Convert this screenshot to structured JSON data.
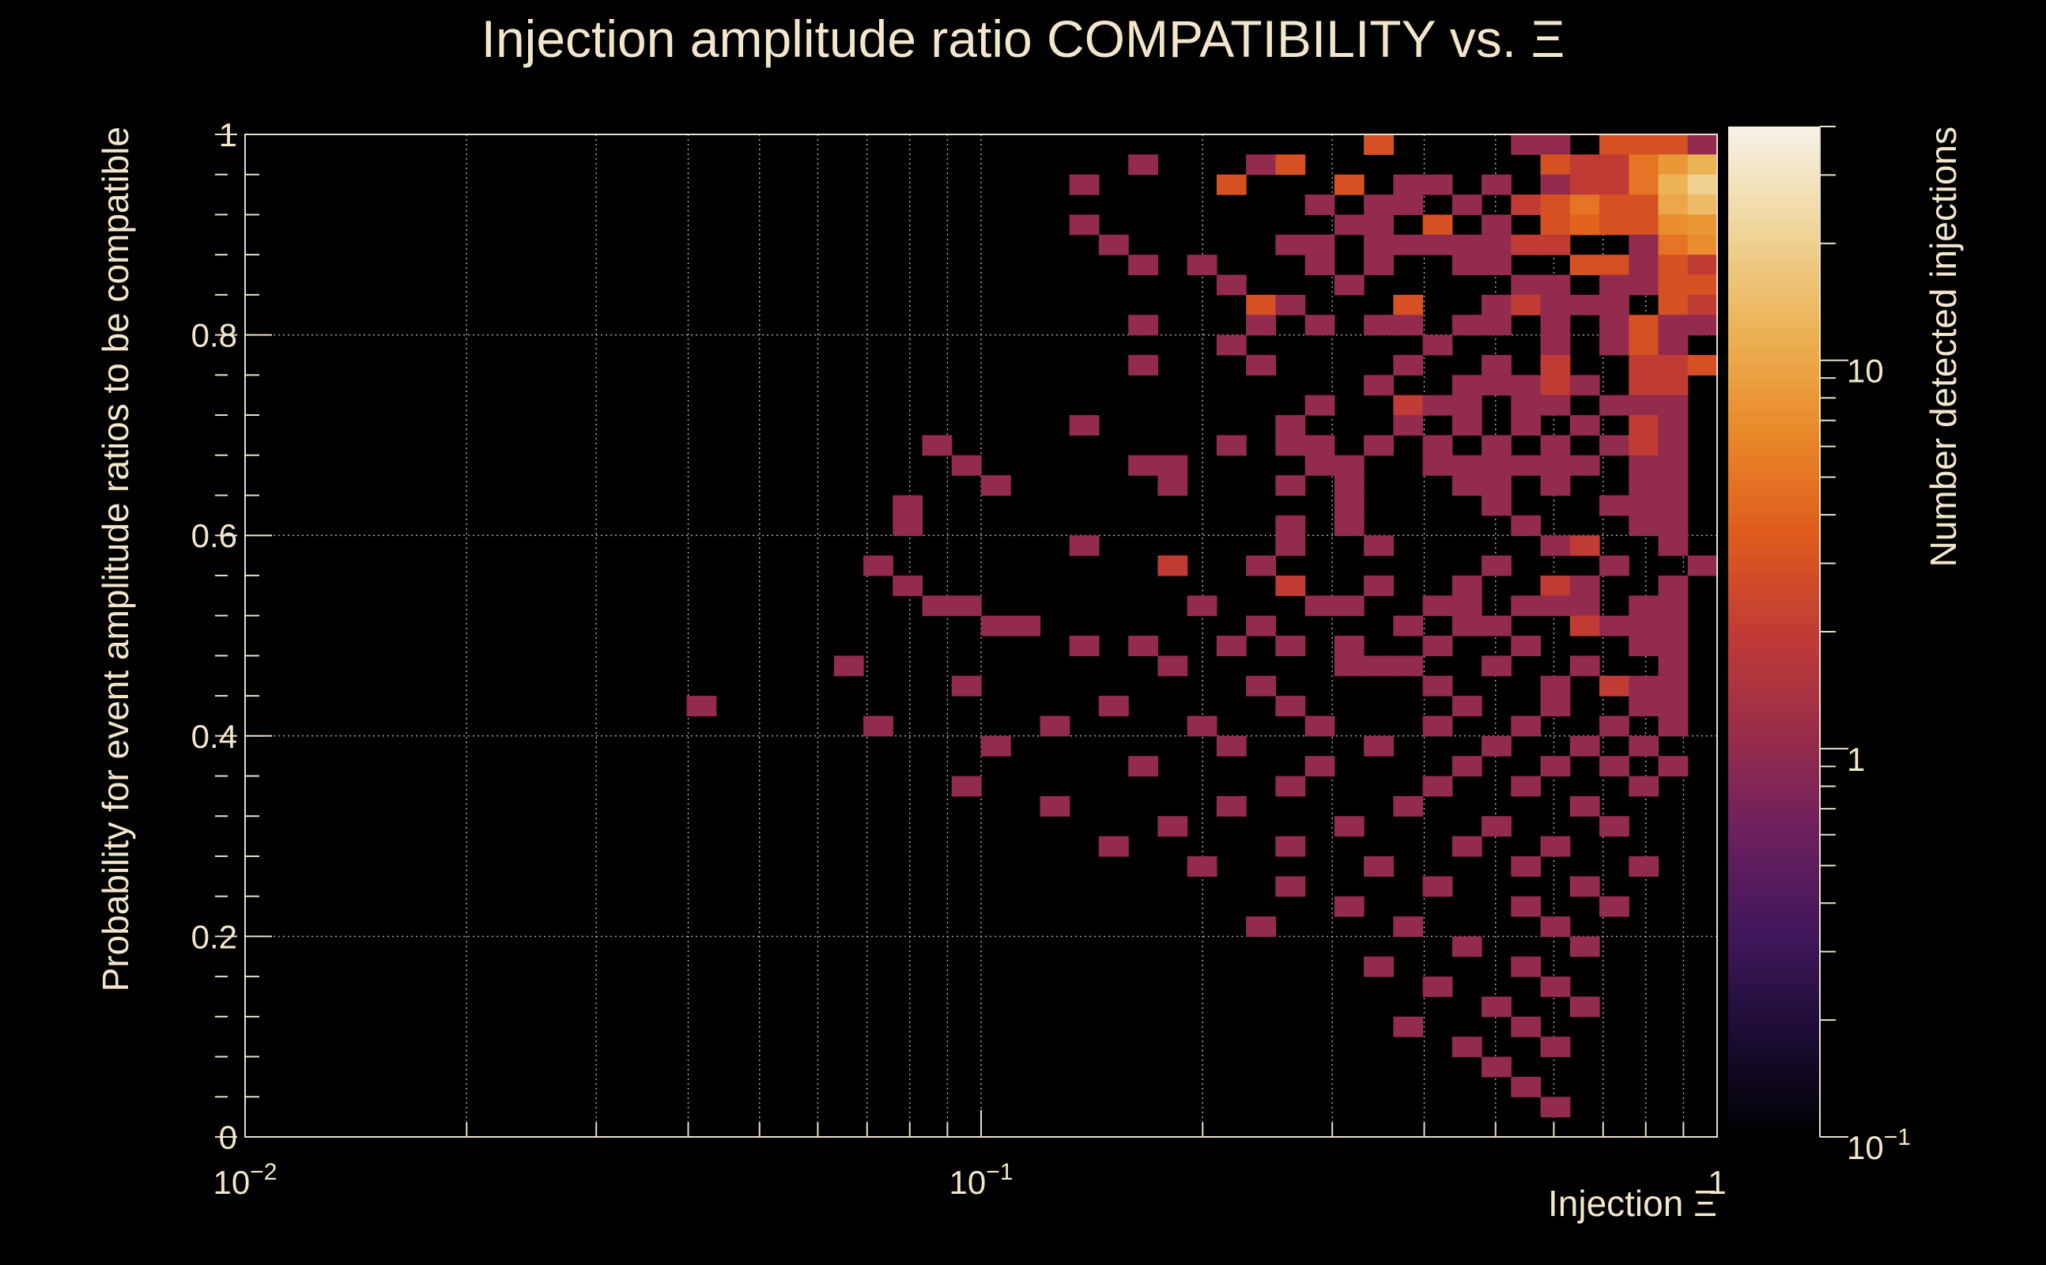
{
  "chart_data": {
    "type": "heatmap",
    "title": "Injection amplitude ratio COMPATIBILITY vs.  Ξ",
    "xlabel": "Injection Ξ",
    "ylabel": "Probability for event amplitude ratios to be compatible",
    "zlabel": "Number detected injections",
    "x_scale": "log",
    "z_scale": "log",
    "xlim": [
      0.01,
      1
    ],
    "ylim": [
      0,
      1
    ],
    "zlim": [
      0.1,
      40
    ],
    "grid": true,
    "x_bins": 50,
    "y_bins": 50,
    "x_ticks": [
      {
        "value": 0.01,
        "base": "10",
        "exp": "−2"
      },
      {
        "value": 0.1,
        "base": "10",
        "exp": "−1"
      },
      {
        "value": 1,
        "base": "1",
        "exp": ""
      }
    ],
    "y_ticks": [
      {
        "value": 0,
        "label": "0"
      },
      {
        "value": 0.2,
        "label": "0.2"
      },
      {
        "value": 0.4,
        "label": "0.4"
      },
      {
        "value": 0.6,
        "label": "0.6"
      },
      {
        "value": 0.8,
        "label": "0.8"
      },
      {
        "value": 1,
        "label": "1"
      }
    ],
    "z_ticks": [
      {
        "value": 0.1,
        "base": "10",
        "exp": "−1"
      },
      {
        "value": 1,
        "base": "1",
        "exp": ""
      },
      {
        "value": 10,
        "base": "10",
        "exp": ""
      }
    ],
    "colormap": [
      "#000000",
      "#1a0c33",
      "#40175a",
      "#6a1f5e",
      "#9a2d4a",
      "#c13b35",
      "#df5c1c",
      "#e98a2a",
      "#ecb355",
      "#efd59a",
      "#f7f2e8"
    ],
    "cells_note_format": "[x_bin_index, y_bin_index, count]",
    "cells": [
      [
        38,
        49,
        3
      ],
      [
        43,
        49,
        1
      ],
      [
        44,
        49,
        1
      ],
      [
        46,
        49,
        3
      ],
      [
        47,
        49,
        3
      ],
      [
        48,
        49,
        3
      ],
      [
        49,
        49,
        1
      ],
      [
        30,
        48,
        1
      ],
      [
        34,
        48,
        1
      ],
      [
        35,
        48,
        3
      ],
      [
        44,
        48,
        3
      ],
      [
        45,
        48,
        2
      ],
      [
        46,
        48,
        2
      ],
      [
        47,
        48,
        5
      ],
      [
        48,
        48,
        8
      ],
      [
        49,
        48,
        12
      ],
      [
        28,
        47,
        1
      ],
      [
        33,
        47,
        3
      ],
      [
        37,
        47,
        3
      ],
      [
        39,
        47,
        1
      ],
      [
        40,
        47,
        1
      ],
      [
        42,
        47,
        1
      ],
      [
        44,
        47,
        1
      ],
      [
        45,
        47,
        2
      ],
      [
        46,
        47,
        2
      ],
      [
        47,
        47,
        5
      ],
      [
        48,
        47,
        12
      ],
      [
        49,
        47,
        20
      ],
      [
        36,
        46,
        1
      ],
      [
        38,
        46,
        1
      ],
      [
        39,
        46,
        1
      ],
      [
        41,
        46,
        1
      ],
      [
        43,
        46,
        2
      ],
      [
        44,
        46,
        3
      ],
      [
        45,
        46,
        5
      ],
      [
        46,
        46,
        3
      ],
      [
        47,
        46,
        3
      ],
      [
        48,
        46,
        10
      ],
      [
        49,
        46,
        14
      ],
      [
        28,
        45,
        1
      ],
      [
        37,
        45,
        1
      ],
      [
        38,
        45,
        1
      ],
      [
        40,
        45,
        3
      ],
      [
        42,
        45,
        1
      ],
      [
        44,
        45,
        3
      ],
      [
        45,
        45,
        4
      ],
      [
        46,
        45,
        3
      ],
      [
        47,
        45,
        3
      ],
      [
        48,
        45,
        7
      ],
      [
        49,
        45,
        8
      ],
      [
        29,
        44,
        1
      ],
      [
        35,
        44,
        1
      ],
      [
        36,
        44,
        1
      ],
      [
        38,
        44,
        1
      ],
      [
        39,
        44,
        1
      ],
      [
        40,
        44,
        1
      ],
      [
        41,
        44,
        1
      ],
      [
        42,
        44,
        1
      ],
      [
        43,
        44,
        2
      ],
      [
        44,
        44,
        2
      ],
      [
        47,
        44,
        1
      ],
      [
        48,
        44,
        5
      ],
      [
        49,
        44,
        7
      ],
      [
        30,
        43,
        1
      ],
      [
        32,
        43,
        1
      ],
      [
        36,
        43,
        1
      ],
      [
        38,
        43,
        1
      ],
      [
        41,
        43,
        1
      ],
      [
        42,
        43,
        1
      ],
      [
        45,
        43,
        3
      ],
      [
        46,
        43,
        3
      ],
      [
        47,
        43,
        1
      ],
      [
        48,
        43,
        3
      ],
      [
        49,
        43,
        2
      ],
      [
        33,
        42,
        1
      ],
      [
        37,
        42,
        1
      ],
      [
        43,
        42,
        1
      ],
      [
        44,
        42,
        1
      ],
      [
        46,
        42,
        1
      ],
      [
        47,
        42,
        1
      ],
      [
        48,
        42,
        3
      ],
      [
        49,
        42,
        3
      ],
      [
        34,
        41,
        3
      ],
      [
        35,
        41,
        1
      ],
      [
        39,
        41,
        3
      ],
      [
        42,
        41,
        1
      ],
      [
        43,
        41,
        2
      ],
      [
        44,
        41,
        1
      ],
      [
        45,
        41,
        1
      ],
      [
        46,
        41,
        1
      ],
      [
        48,
        41,
        3
      ],
      [
        49,
        41,
        2
      ],
      [
        30,
        40,
        1
      ],
      [
        34,
        40,
        1
      ],
      [
        36,
        40,
        1
      ],
      [
        38,
        40,
        1
      ],
      [
        39,
        40,
        1
      ],
      [
        41,
        40,
        1
      ],
      [
        42,
        40,
        1
      ],
      [
        44,
        40,
        1
      ],
      [
        46,
        40,
        1
      ],
      [
        47,
        40,
        3
      ],
      [
        48,
        40,
        1
      ],
      [
        49,
        40,
        1
      ],
      [
        33,
        39,
        1
      ],
      [
        40,
        39,
        1
      ],
      [
        44,
        39,
        1
      ],
      [
        46,
        39,
        1
      ],
      [
        47,
        39,
        3
      ],
      [
        48,
        39,
        1
      ],
      [
        30,
        38,
        1
      ],
      [
        34,
        38,
        1
      ],
      [
        39,
        38,
        1
      ],
      [
        42,
        38,
        1
      ],
      [
        44,
        38,
        2
      ],
      [
        47,
        38,
        2
      ],
      [
        48,
        38,
        2
      ],
      [
        49,
        38,
        3
      ],
      [
        38,
        37,
        1
      ],
      [
        41,
        37,
        1
      ],
      [
        42,
        37,
        1
      ],
      [
        43,
        37,
        1
      ],
      [
        44,
        37,
        2
      ],
      [
        45,
        37,
        1
      ],
      [
        47,
        37,
        2
      ],
      [
        48,
        37,
        2
      ],
      [
        36,
        36,
        1
      ],
      [
        39,
        36,
        2
      ],
      [
        40,
        36,
        1
      ],
      [
        41,
        36,
        1
      ],
      [
        43,
        36,
        1
      ],
      [
        44,
        36,
        1
      ],
      [
        46,
        36,
        1
      ],
      [
        47,
        36,
        1
      ],
      [
        48,
        36,
        1
      ],
      [
        28,
        35,
        1
      ],
      [
        35,
        35,
        1
      ],
      [
        39,
        35,
        1
      ],
      [
        41,
        35,
        1
      ],
      [
        43,
        35,
        1
      ],
      [
        45,
        35,
        1
      ],
      [
        47,
        35,
        2
      ],
      [
        48,
        35,
        1
      ],
      [
        23,
        34,
        1
      ],
      [
        33,
        34,
        1
      ],
      [
        35,
        34,
        1
      ],
      [
        36,
        34,
        1
      ],
      [
        38,
        34,
        1
      ],
      [
        40,
        34,
        1
      ],
      [
        42,
        34,
        1
      ],
      [
        44,
        34,
        1
      ],
      [
        46,
        34,
        1
      ],
      [
        47,
        34,
        2
      ],
      [
        48,
        34,
        1
      ],
      [
        24,
        33,
        1
      ],
      [
        30,
        33,
        1
      ],
      [
        31,
        33,
        1
      ],
      [
        36,
        33,
        1
      ],
      [
        37,
        33,
        1
      ],
      [
        40,
        33,
        1
      ],
      [
        41,
        33,
        1
      ],
      [
        42,
        33,
        1
      ],
      [
        43,
        33,
        1
      ],
      [
        44,
        33,
        1
      ],
      [
        45,
        33,
        1
      ],
      [
        47,
        33,
        1
      ],
      [
        48,
        33,
        1
      ],
      [
        25,
        32,
        1
      ],
      [
        31,
        32,
        1
      ],
      [
        35,
        32,
        1
      ],
      [
        37,
        32,
        1
      ],
      [
        41,
        32,
        1
      ],
      [
        42,
        32,
        1
      ],
      [
        44,
        32,
        1
      ],
      [
        47,
        32,
        1
      ],
      [
        48,
        32,
        1
      ],
      [
        22,
        31,
        1
      ],
      [
        37,
        31,
        1
      ],
      [
        42,
        31,
        1
      ],
      [
        46,
        31,
        1
      ],
      [
        47,
        31,
        1
      ],
      [
        48,
        31,
        1
      ],
      [
        22,
        30,
        1
      ],
      [
        35,
        30,
        1
      ],
      [
        37,
        30,
        1
      ],
      [
        43,
        30,
        1
      ],
      [
        47,
        30,
        1
      ],
      [
        48,
        30,
        1
      ],
      [
        28,
        29,
        1
      ],
      [
        35,
        29,
        1
      ],
      [
        38,
        29,
        1
      ],
      [
        44,
        29,
        1
      ],
      [
        45,
        29,
        2
      ],
      [
        48,
        29,
        1
      ],
      [
        21,
        28,
        1
      ],
      [
        31,
        28,
        2
      ],
      [
        34,
        28,
        1
      ],
      [
        42,
        28,
        1
      ],
      [
        46,
        28,
        1
      ],
      [
        49,
        28,
        1
      ],
      [
        22,
        27,
        1
      ],
      [
        35,
        27,
        2
      ],
      [
        38,
        27,
        1
      ],
      [
        41,
        27,
        1
      ],
      [
        44,
        27,
        2
      ],
      [
        45,
        27,
        1
      ],
      [
        48,
        27,
        1
      ],
      [
        23,
        26,
        1
      ],
      [
        24,
        26,
        1
      ],
      [
        32,
        26,
        1
      ],
      [
        36,
        26,
        1
      ],
      [
        37,
        26,
        1
      ],
      [
        40,
        26,
        1
      ],
      [
        41,
        26,
        1
      ],
      [
        43,
        26,
        1
      ],
      [
        44,
        26,
        1
      ],
      [
        45,
        26,
        1
      ],
      [
        47,
        26,
        1
      ],
      [
        48,
        26,
        1
      ],
      [
        25,
        25,
        1
      ],
      [
        26,
        25,
        1
      ],
      [
        34,
        25,
        1
      ],
      [
        39,
        25,
        1
      ],
      [
        41,
        25,
        1
      ],
      [
        42,
        25,
        1
      ],
      [
        45,
        25,
        2
      ],
      [
        46,
        25,
        1
      ],
      [
        47,
        25,
        1
      ],
      [
        48,
        25,
        1
      ],
      [
        28,
        24,
        1
      ],
      [
        30,
        24,
        1
      ],
      [
        33,
        24,
        1
      ],
      [
        35,
        24,
        1
      ],
      [
        37,
        24,
        1
      ],
      [
        40,
        24,
        1
      ],
      [
        43,
        24,
        1
      ],
      [
        47,
        24,
        1
      ],
      [
        48,
        24,
        1
      ],
      [
        20,
        23,
        1
      ],
      [
        31,
        23,
        1
      ],
      [
        37,
        23,
        1
      ],
      [
        38,
        23,
        1
      ],
      [
        39,
        23,
        1
      ],
      [
        42,
        23,
        1
      ],
      [
        45,
        23,
        1
      ],
      [
        48,
        23,
        1
      ],
      [
        24,
        22,
        1
      ],
      [
        34,
        22,
        1
      ],
      [
        40,
        22,
        1
      ],
      [
        44,
        22,
        1
      ],
      [
        46,
        22,
        2
      ],
      [
        47,
        22,
        1
      ],
      [
        48,
        22,
        1
      ],
      [
        15,
        21,
        1
      ],
      [
        29,
        21,
        1
      ],
      [
        35,
        21,
        1
      ],
      [
        41,
        21,
        1
      ],
      [
        44,
        21,
        1
      ],
      [
        47,
        21,
        1
      ],
      [
        48,
        21,
        1
      ],
      [
        21,
        20,
        1
      ],
      [
        27,
        20,
        1
      ],
      [
        32,
        20,
        1
      ],
      [
        36,
        20,
        1
      ],
      [
        40,
        20,
        1
      ],
      [
        43,
        20,
        1
      ],
      [
        46,
        20,
        1
      ],
      [
        48,
        20,
        1
      ],
      [
        25,
        19,
        1
      ],
      [
        33,
        19,
        1
      ],
      [
        38,
        19,
        1
      ],
      [
        42,
        19,
        1
      ],
      [
        45,
        19,
        1
      ],
      [
        47,
        19,
        1
      ],
      [
        30,
        18,
        1
      ],
      [
        36,
        18,
        1
      ],
      [
        41,
        18,
        1
      ],
      [
        44,
        18,
        1
      ],
      [
        46,
        18,
        1
      ],
      [
        48,
        18,
        1
      ],
      [
        24,
        17,
        1
      ],
      [
        35,
        17,
        1
      ],
      [
        40,
        17,
        1
      ],
      [
        43,
        17,
        1
      ],
      [
        47,
        17,
        1
      ],
      [
        27,
        16,
        1
      ],
      [
        33,
        16,
        1
      ],
      [
        39,
        16,
        1
      ],
      [
        45,
        16,
        1
      ],
      [
        31,
        15,
        1
      ],
      [
        37,
        15,
        1
      ],
      [
        42,
        15,
        1
      ],
      [
        46,
        15,
        1
      ],
      [
        29,
        14,
        1
      ],
      [
        35,
        14,
        1
      ],
      [
        41,
        14,
        1
      ],
      [
        44,
        14,
        1
      ],
      [
        32,
        13,
        1
      ],
      [
        38,
        13,
        1
      ],
      [
        43,
        13,
        1
      ],
      [
        47,
        13,
        1
      ],
      [
        35,
        12,
        1
      ],
      [
        40,
        12,
        1
      ],
      [
        45,
        12,
        1
      ],
      [
        37,
        11,
        1
      ],
      [
        43,
        11,
        1
      ],
      [
        46,
        11,
        1
      ],
      [
        34,
        10,
        1
      ],
      [
        39,
        10,
        1
      ],
      [
        44,
        10,
        1
      ],
      [
        41,
        9,
        1
      ],
      [
        45,
        9,
        1
      ],
      [
        38,
        8,
        1
      ],
      [
        43,
        8,
        1
      ],
      [
        40,
        7,
        1
      ],
      [
        44,
        7,
        1
      ],
      [
        42,
        6,
        1
      ],
      [
        45,
        6,
        1
      ],
      [
        39,
        5,
        1
      ],
      [
        43,
        5,
        1
      ],
      [
        41,
        4,
        1
      ],
      [
        44,
        4,
        1
      ],
      [
        42,
        3,
        1
      ],
      [
        43,
        2,
        1
      ],
      [
        44,
        1,
        1
      ]
    ]
  }
}
